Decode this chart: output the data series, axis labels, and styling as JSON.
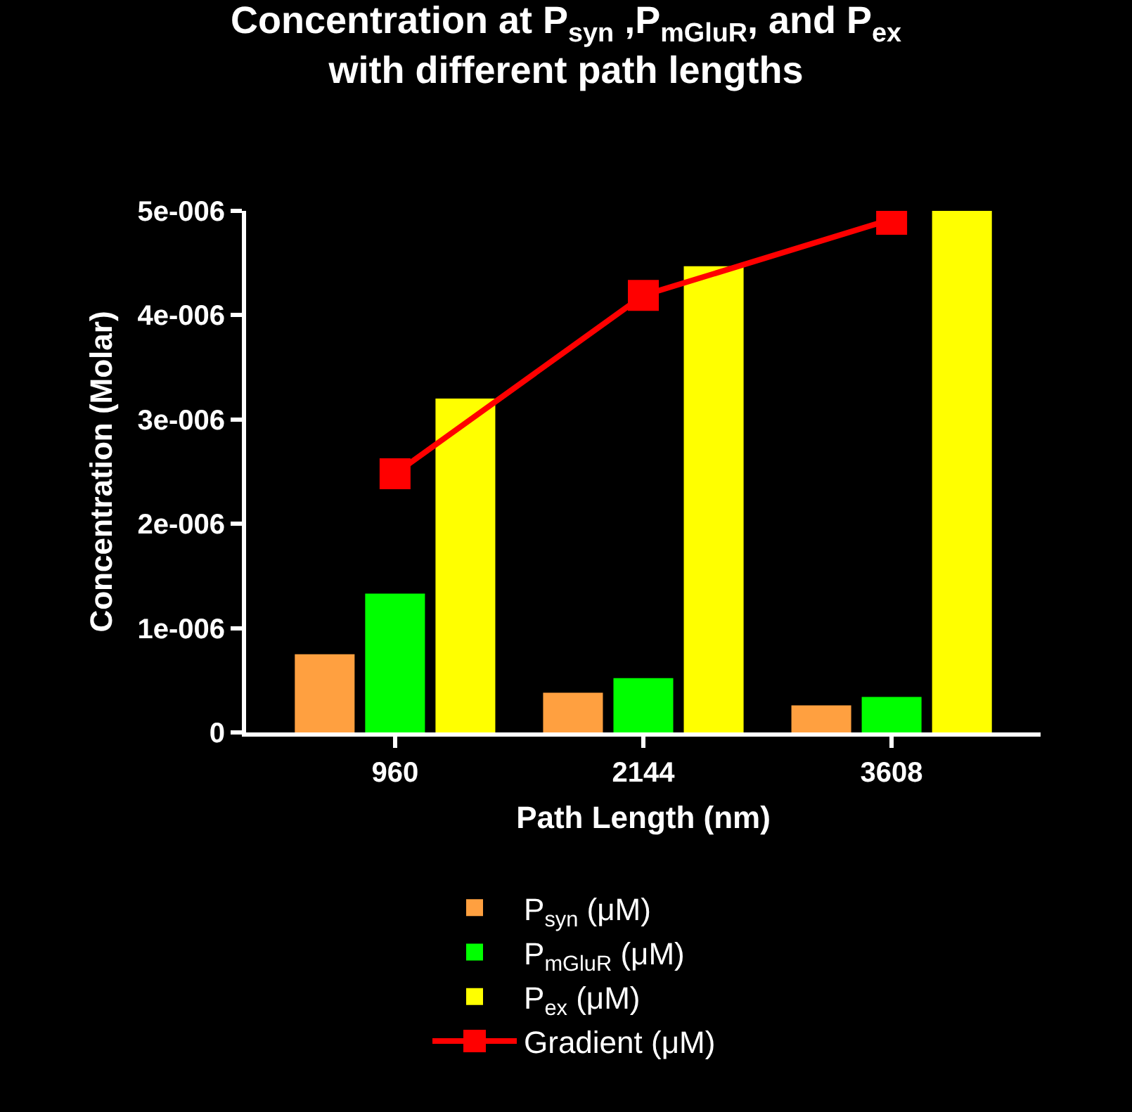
{
  "chart_data": {
    "type": "bar",
    "title": "Concentration at P$_{syn}$ ,P$_{mGluR}$, and P$_{ex}$\nwith different path lengths",
    "xlabel": "Path Length (nm)",
    "ylabel": "Concentration (Molar)",
    "categories": [
      "960",
      "2144",
      "3608"
    ],
    "series": [
      {
        "name": "P$_{syn}$ (μM)",
        "color": "#ffa040",
        "values": [
          7.5e-07,
          3.8e-07,
          2.6e-07
        ]
      },
      {
        "name": "P$_{mGluR}$ (μM)",
        "color": "#00ff00",
        "values": [
          1.33e-06,
          5.2e-07,
          3.4e-07
        ]
      },
      {
        "name": "P$_{ex}$ (μM)",
        "color": "#ffff00",
        "values": [
          3.2e-06,
          4.47e-06,
          5e-06
        ]
      },
      {
        "name": "Gradient (μM)",
        "type": "line",
        "color": "#ff0000",
        "marker": "square",
        "values": [
          2.48e-06,
          4.19e-06,
          4.92e-06
        ]
      }
    ],
    "ylim": [
      0,
      5e-06
    ],
    "yticks": [
      {
        "value": 0,
        "label": "0"
      },
      {
        "value": 1e-06,
        "label": "1e-006"
      },
      {
        "value": 2e-06,
        "label": "2e-006"
      },
      {
        "value": 3e-06,
        "label": "3e-006"
      },
      {
        "value": 4e-06,
        "label": "4e-006"
      },
      {
        "value": 5e-06,
        "label": "5e-006"
      }
    ],
    "grid": false,
    "legend": "bottom"
  }
}
